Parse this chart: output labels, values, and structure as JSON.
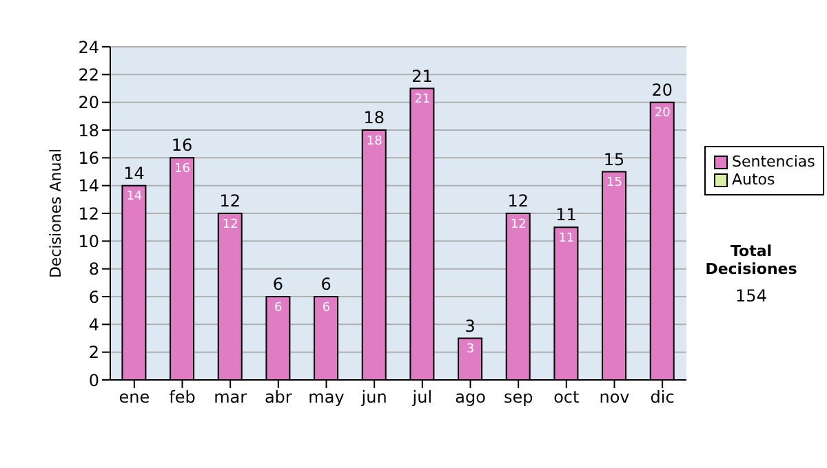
{
  "chart_data": {
    "type": "bar",
    "ylabel": "Decisiones Anual",
    "categories": [
      "ene",
      "feb",
      "mar",
      "abr",
      "may",
      "jun",
      "jul",
      "ago",
      "sep",
      "oct",
      "nov",
      "dic"
    ],
    "series": [
      {
        "name": "Sentencias",
        "color": "#e07cc4",
        "values": [
          14,
          16,
          12,
          6,
          6,
          18,
          21,
          3,
          12,
          11,
          15,
          20
        ],
        "value_labels": [
          "14",
          "16",
          "12",
          "6",
          "6",
          "18",
          "21",
          "3",
          "12",
          "11",
          "15",
          "20"
        ]
      },
      {
        "name": "Autos",
        "color": "#d8f0a8",
        "values": [
          null,
          null,
          null,
          null,
          null,
          null,
          null,
          null,
          null,
          null,
          null,
          null
        ]
      }
    ],
    "ylim": [
      0,
      24
    ],
    "yticks": [
      0,
      2,
      4,
      6,
      8,
      10,
      12,
      14,
      16,
      18,
      20,
      22,
      24
    ],
    "grid": "y",
    "legend": "right",
    "annotations": [
      "Total Decisiones",
      "154",
      {
        "text": "14",
        "x": "ene",
        "y": 14
      },
      {
        "text": "16",
        "x": "feb",
        "y": 16
      },
      {
        "text": "12",
        "x": "mar",
        "y": 12
      },
      {
        "text": "6",
        "x": "abr",
        "y": 6
      },
      {
        "text": "6",
        "x": "may",
        "y": 6
      },
      {
        "text": "18",
        "x": "jun",
        "y": 18
      },
      {
        "text": "21",
        "x": "jul",
        "y": 21
      },
      {
        "text": "3",
        "x": "ago",
        "y": 3
      },
      {
        "text": "12",
        "x": "sep",
        "y": 12
      },
      {
        "text": "11",
        "x": "oct",
        "y": 11
      },
      {
        "text": "15",
        "x": "nov",
        "y": 15
      },
      {
        "text": "20",
        "x": "dic",
        "y": 20
      }
    ]
  }
}
